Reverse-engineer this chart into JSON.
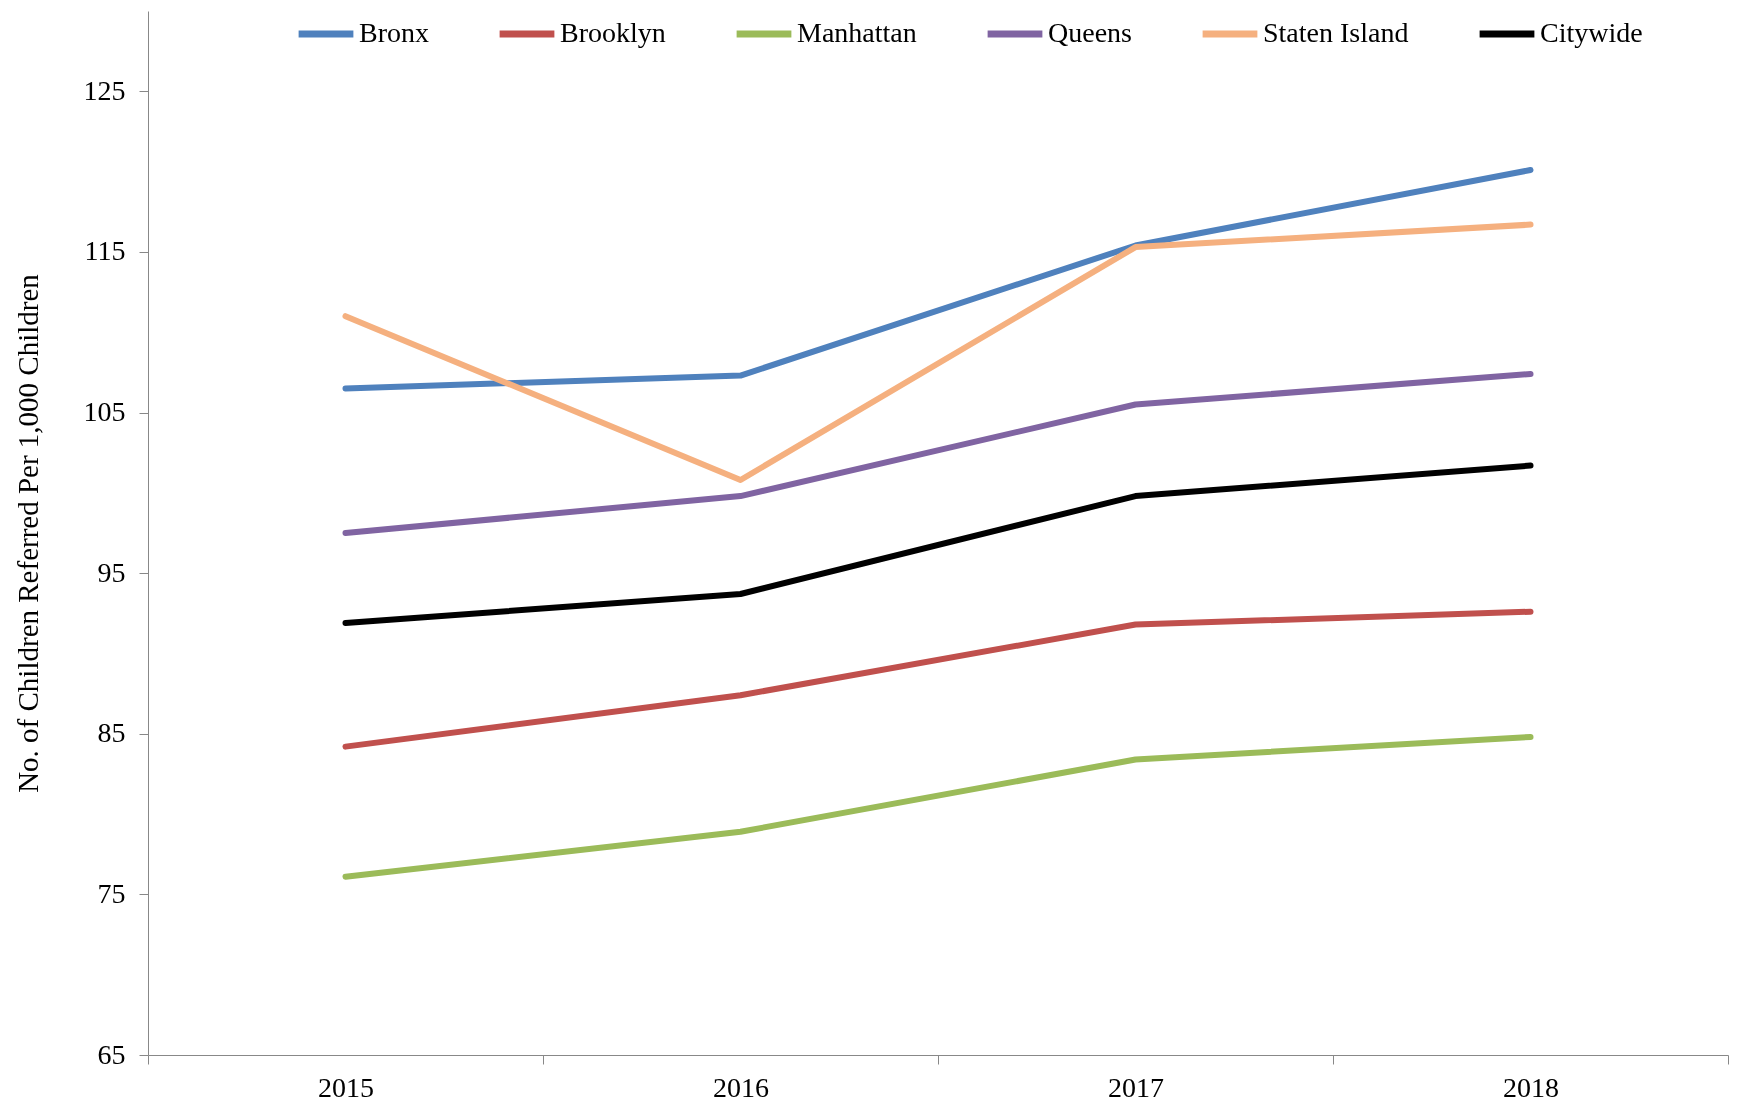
{
  "chart_data": {
    "type": "line",
    "ylabel": "No. of Children Referred Per 1,000 Children",
    "categories": [
      "2015",
      "2016",
      "2017",
      "2018"
    ],
    "series": [
      {
        "name": "Bronx",
        "color": "#4f81bd",
        "values": [
          106.5,
          107.3,
          115.4,
          120.1
        ]
      },
      {
        "name": "Brooklyn",
        "color": "#c0504d",
        "values": [
          84.2,
          87.4,
          91.8,
          92.6
        ]
      },
      {
        "name": "Manhattan",
        "color": "#9bbb59",
        "values": [
          76.1,
          78.9,
          83.4,
          84.8
        ]
      },
      {
        "name": "Queens",
        "color": "#8064a2",
        "values": [
          97.5,
          99.8,
          105.5,
          107.4
        ]
      },
      {
        "name": "Staten Island",
        "color": "#f5b07f",
        "values": [
          111.0,
          100.8,
          115.3,
          116.7
        ]
      },
      {
        "name": "Citywide",
        "color": "#000000",
        "values": [
          91.9,
          93.7,
          99.8,
          101.7
        ]
      }
    ],
    "ylim": [
      65,
      130
    ],
    "yticks": [
      65,
      75,
      85,
      95,
      105,
      115,
      125
    ],
    "grid": false,
    "legend": "top",
    "line_style": "solid"
  }
}
